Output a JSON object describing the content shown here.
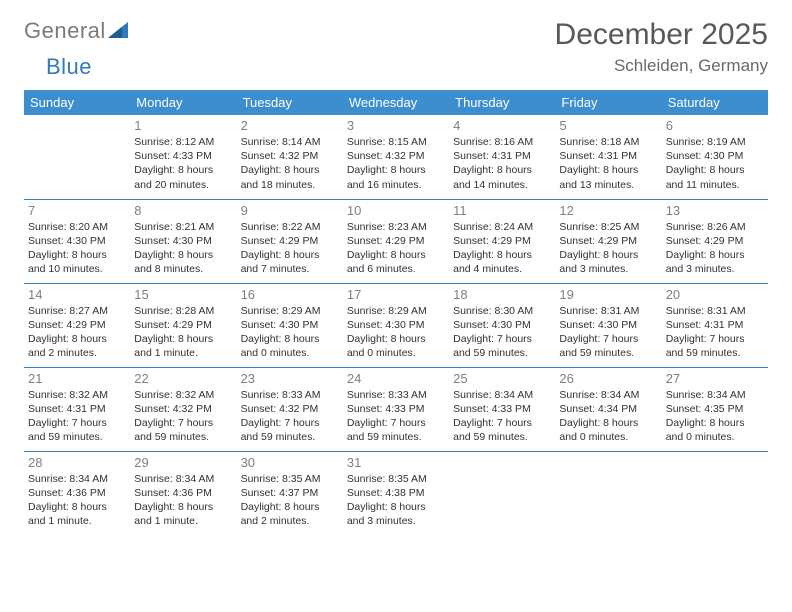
{
  "branding": {
    "logo_text_1": "General",
    "logo_text_2": "Blue",
    "logo_color_1": "#7a7a7a",
    "logo_color_2": "#2f79bd",
    "logo_triangle_color": "#2f79bd"
  },
  "header": {
    "month_title": "December 2025",
    "location": "Schleiden, Germany",
    "title_color": "#555a5e",
    "location_color": "#666a6e"
  },
  "style": {
    "header_bg": "#3c8ecf",
    "header_text": "#ffffff",
    "divider_color": "#3a7fb8",
    "daynum_color": "#7d8083",
    "info_color": "#323232",
    "background_color": "#ffffff",
    "day_header_fontsize": 13,
    "title_fontsize": 30,
    "location_fontsize": 17,
    "info_fontsize": 10.5,
    "daynum_fontsize": 13
  },
  "day_names": [
    "Sunday",
    "Monday",
    "Tuesday",
    "Wednesday",
    "Thursday",
    "Friday",
    "Saturday"
  ],
  "weeks": [
    [
      {
        "n": "",
        "sr": "",
        "ss": "",
        "dl": ""
      },
      {
        "n": "1",
        "sr": "Sunrise: 8:12 AM",
        "ss": "Sunset: 4:33 PM",
        "dl": "Daylight: 8 hours and 20 minutes."
      },
      {
        "n": "2",
        "sr": "Sunrise: 8:14 AM",
        "ss": "Sunset: 4:32 PM",
        "dl": "Daylight: 8 hours and 18 minutes."
      },
      {
        "n": "3",
        "sr": "Sunrise: 8:15 AM",
        "ss": "Sunset: 4:32 PM",
        "dl": "Daylight: 8 hours and 16 minutes."
      },
      {
        "n": "4",
        "sr": "Sunrise: 8:16 AM",
        "ss": "Sunset: 4:31 PM",
        "dl": "Daylight: 8 hours and 14 minutes."
      },
      {
        "n": "5",
        "sr": "Sunrise: 8:18 AM",
        "ss": "Sunset: 4:31 PM",
        "dl": "Daylight: 8 hours and 13 minutes."
      },
      {
        "n": "6",
        "sr": "Sunrise: 8:19 AM",
        "ss": "Sunset: 4:30 PM",
        "dl": "Daylight: 8 hours and 11 minutes."
      }
    ],
    [
      {
        "n": "7",
        "sr": "Sunrise: 8:20 AM",
        "ss": "Sunset: 4:30 PM",
        "dl": "Daylight: 8 hours and 10 minutes."
      },
      {
        "n": "8",
        "sr": "Sunrise: 8:21 AM",
        "ss": "Sunset: 4:30 PM",
        "dl": "Daylight: 8 hours and 8 minutes."
      },
      {
        "n": "9",
        "sr": "Sunrise: 8:22 AM",
        "ss": "Sunset: 4:29 PM",
        "dl": "Daylight: 8 hours and 7 minutes."
      },
      {
        "n": "10",
        "sr": "Sunrise: 8:23 AM",
        "ss": "Sunset: 4:29 PM",
        "dl": "Daylight: 8 hours and 6 minutes."
      },
      {
        "n": "11",
        "sr": "Sunrise: 8:24 AM",
        "ss": "Sunset: 4:29 PM",
        "dl": "Daylight: 8 hours and 4 minutes."
      },
      {
        "n": "12",
        "sr": "Sunrise: 8:25 AM",
        "ss": "Sunset: 4:29 PM",
        "dl": "Daylight: 8 hours and 3 minutes."
      },
      {
        "n": "13",
        "sr": "Sunrise: 8:26 AM",
        "ss": "Sunset: 4:29 PM",
        "dl": "Daylight: 8 hours and 3 minutes."
      }
    ],
    [
      {
        "n": "14",
        "sr": "Sunrise: 8:27 AM",
        "ss": "Sunset: 4:29 PM",
        "dl": "Daylight: 8 hours and 2 minutes."
      },
      {
        "n": "15",
        "sr": "Sunrise: 8:28 AM",
        "ss": "Sunset: 4:29 PM",
        "dl": "Daylight: 8 hours and 1 minute."
      },
      {
        "n": "16",
        "sr": "Sunrise: 8:29 AM",
        "ss": "Sunset: 4:30 PM",
        "dl": "Daylight: 8 hours and 0 minutes."
      },
      {
        "n": "17",
        "sr": "Sunrise: 8:29 AM",
        "ss": "Sunset: 4:30 PM",
        "dl": "Daylight: 8 hours and 0 minutes."
      },
      {
        "n": "18",
        "sr": "Sunrise: 8:30 AM",
        "ss": "Sunset: 4:30 PM",
        "dl": "Daylight: 7 hours and 59 minutes."
      },
      {
        "n": "19",
        "sr": "Sunrise: 8:31 AM",
        "ss": "Sunset: 4:30 PM",
        "dl": "Daylight: 7 hours and 59 minutes."
      },
      {
        "n": "20",
        "sr": "Sunrise: 8:31 AM",
        "ss": "Sunset: 4:31 PM",
        "dl": "Daylight: 7 hours and 59 minutes."
      }
    ],
    [
      {
        "n": "21",
        "sr": "Sunrise: 8:32 AM",
        "ss": "Sunset: 4:31 PM",
        "dl": "Daylight: 7 hours and 59 minutes."
      },
      {
        "n": "22",
        "sr": "Sunrise: 8:32 AM",
        "ss": "Sunset: 4:32 PM",
        "dl": "Daylight: 7 hours and 59 minutes."
      },
      {
        "n": "23",
        "sr": "Sunrise: 8:33 AM",
        "ss": "Sunset: 4:32 PM",
        "dl": "Daylight: 7 hours and 59 minutes."
      },
      {
        "n": "24",
        "sr": "Sunrise: 8:33 AM",
        "ss": "Sunset: 4:33 PM",
        "dl": "Daylight: 7 hours and 59 minutes."
      },
      {
        "n": "25",
        "sr": "Sunrise: 8:34 AM",
        "ss": "Sunset: 4:33 PM",
        "dl": "Daylight: 7 hours and 59 minutes."
      },
      {
        "n": "26",
        "sr": "Sunrise: 8:34 AM",
        "ss": "Sunset: 4:34 PM",
        "dl": "Daylight: 8 hours and 0 minutes."
      },
      {
        "n": "27",
        "sr": "Sunrise: 8:34 AM",
        "ss": "Sunset: 4:35 PM",
        "dl": "Daylight: 8 hours and 0 minutes."
      }
    ],
    [
      {
        "n": "28",
        "sr": "Sunrise: 8:34 AM",
        "ss": "Sunset: 4:36 PM",
        "dl": "Daylight: 8 hours and 1 minute."
      },
      {
        "n": "29",
        "sr": "Sunrise: 8:34 AM",
        "ss": "Sunset: 4:36 PM",
        "dl": "Daylight: 8 hours and 1 minute."
      },
      {
        "n": "30",
        "sr": "Sunrise: 8:35 AM",
        "ss": "Sunset: 4:37 PM",
        "dl": "Daylight: 8 hours and 2 minutes."
      },
      {
        "n": "31",
        "sr": "Sunrise: 8:35 AM",
        "ss": "Sunset: 4:38 PM",
        "dl": "Daylight: 8 hours and 3 minutes."
      },
      {
        "n": "",
        "sr": "",
        "ss": "",
        "dl": ""
      },
      {
        "n": "",
        "sr": "",
        "ss": "",
        "dl": ""
      },
      {
        "n": "",
        "sr": "",
        "ss": "",
        "dl": ""
      }
    ]
  ]
}
